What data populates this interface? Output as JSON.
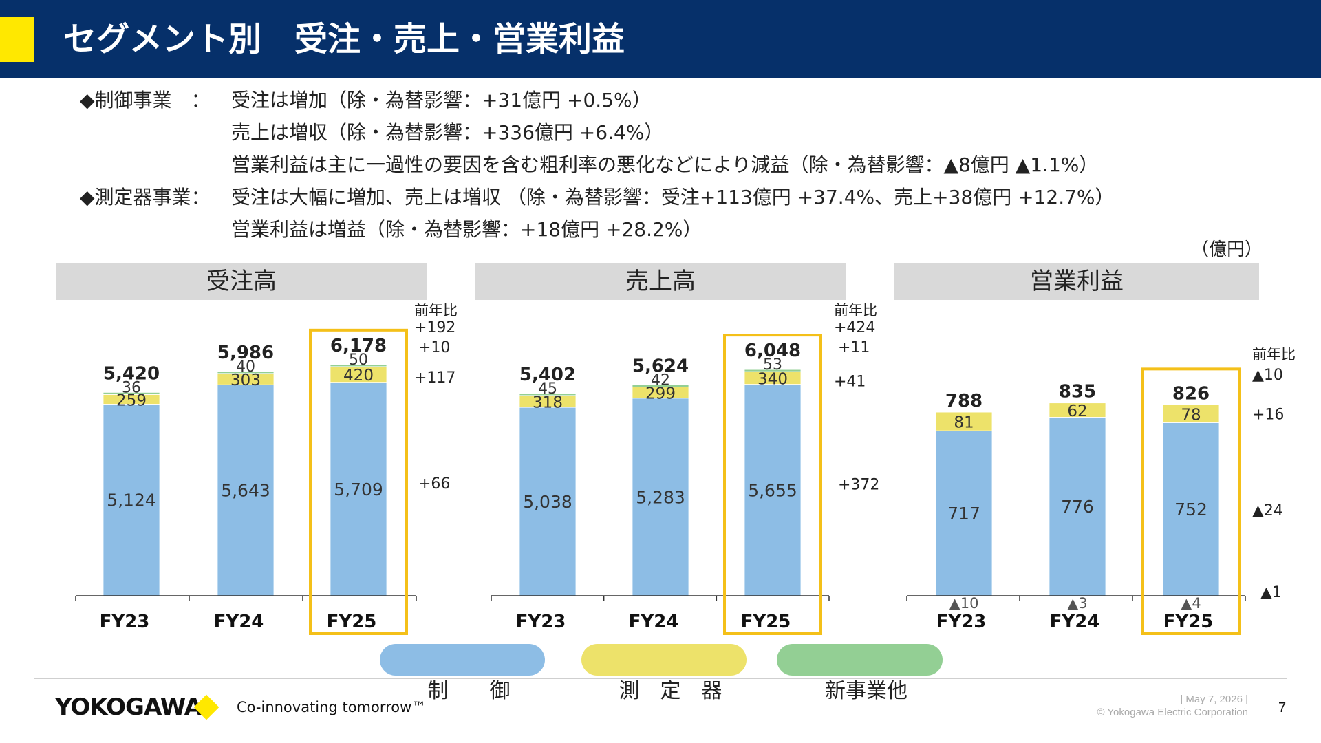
{
  "header": {
    "title": "セグメント別　受注・売上・営業利益"
  },
  "bullets": [
    {
      "label": "◆制御事業　：",
      "text": "受注は増加（除・為替影響：+31億円 +0.5%）"
    },
    {
      "label": "",
      "text": "売上は増収（除・為替影響：+336億円 +6.4%）"
    },
    {
      "label": "",
      "text": "営業利益は主に一過性の要因を含む粗利率の悪化などにより減益（除・為替影響：▲8億円 ▲1.1%）"
    },
    {
      "label": "◆測定器事業：",
      "text": "受注は大幅に増加、売上は増収 （除・為替影響：受注+113億円 +37.4%、売上+38億円 +12.7%）"
    },
    {
      "label": "",
      "text": "営業利益は増益（除・為替影響：+18億円 +28.2%）"
    }
  ],
  "unit": "（億円）",
  "colors": {
    "control": "#8dbde5",
    "measure": "#ede26a",
    "newbiz": "#93cf94",
    "highlight": "#f4c019"
  },
  "legend": [
    {
      "label": "制　　御",
      "color": "#8dbde5"
    },
    {
      "label": "測　定　器",
      "color": "#ede26a"
    },
    {
      "label": "新事業他",
      "color": "#93cf94"
    }
  ],
  "chart_data": [
    {
      "type": "bar",
      "title": "受注高",
      "categories": [
        "FY23",
        "FY24",
        "FY25"
      ],
      "series": [
        {
          "name": "制　　御",
          "values": [
            5124,
            5643,
            5709
          ]
        },
        {
          "name": "測　定　器",
          "values": [
            259,
            303,
            420
          ]
        },
        {
          "name": "新事業他",
          "values": [
            36,
            40,
            50
          ]
        }
      ],
      "totals": [
        "5,420",
        "5,986",
        "6,178"
      ],
      "value_labels": [
        [
          "5,124",
          "5,643",
          "5,709"
        ],
        [
          "259",
          "303",
          "420"
        ],
        [
          "36",
          "40",
          "50"
        ]
      ],
      "yoy_title": "前年比",
      "yoy": {
        "total": "+192",
        "newbiz": "+10",
        "measure": "+117",
        "control": "+66"
      },
      "highlight": "FY25",
      "ylim": [
        0,
        6500
      ]
    },
    {
      "type": "bar",
      "title": "売上高",
      "categories": [
        "FY23",
        "FY24",
        "FY25"
      ],
      "series": [
        {
          "name": "制　　御",
          "values": [
            5038,
            5283,
            5655
          ]
        },
        {
          "name": "測　定　器",
          "values": [
            318,
            299,
            340
          ]
        },
        {
          "name": "新事業他",
          "values": [
            45,
            42,
            53
          ]
        }
      ],
      "totals": [
        "5,402",
        "5,624",
        "6,048"
      ],
      "value_labels": [
        [
          "5,038",
          "5,283",
          "5,655"
        ],
        [
          "318",
          "299",
          "340"
        ],
        [
          "45",
          "42",
          "53"
        ]
      ],
      "yoy_title": "前年比",
      "yoy": {
        "total": "+424",
        "newbiz": "+11",
        "measure": "+41",
        "control": "+372"
      },
      "highlight": "FY25",
      "ylim": [
        0,
        6500
      ]
    },
    {
      "type": "bar",
      "title": "営業利益",
      "categories": [
        "FY23",
        "FY24",
        "FY25"
      ],
      "series": [
        {
          "name": "制　　御",
          "values": [
            717,
            776,
            752
          ]
        },
        {
          "name": "測　定　器",
          "values": [
            81,
            62,
            78
          ]
        },
        {
          "name": "新事業他",
          "values": [
            -10,
            -3,
            -4
          ]
        }
      ],
      "totals": [
        "788",
        "835",
        "826"
      ],
      "value_labels": [
        [
          "717",
          "776",
          "752"
        ],
        [
          "81",
          "62",
          "78"
        ],
        [
          "▲10",
          "▲3",
          "▲4"
        ]
      ],
      "yoy_title": "前年比",
      "yoy": {
        "total": "▲10",
        "measure": "+16",
        "control": "▲24",
        "newbiz": "▲1"
      },
      "highlight": "FY25",
      "ylim": [
        0,
        950
      ]
    }
  ],
  "footer": {
    "logo": "YOKOGAWA",
    "tagline": "Co-innovating tomorrow™",
    "date": "| May 7, 2026 |",
    "copyright": "© Yokogawa Electric Corporation",
    "page": "7"
  }
}
